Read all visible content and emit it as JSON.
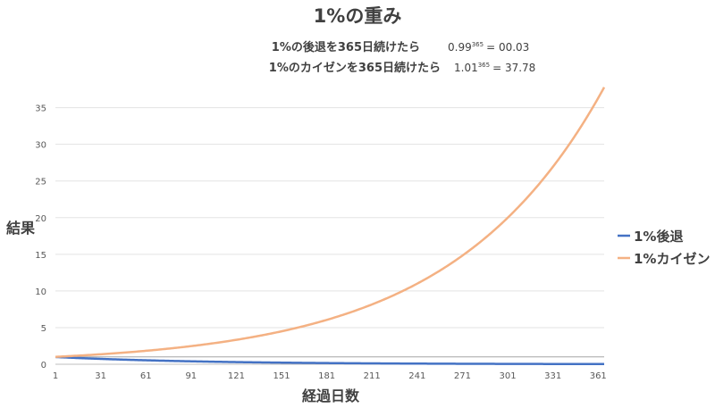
{
  "chart_data": {
    "type": "line",
    "title": "1%の重み",
    "annotations": [
      {
        "label": "1%の後退を365日続けたら",
        "base": "0.99",
        "exponent": "365",
        "result": "= 00.03"
      },
      {
        "label": "1%のカイゼンを365日続けたら",
        "base": "1.01",
        "exponent": "365",
        "result": "= 37.78"
      }
    ],
    "xlabel": "経過日数",
    "ylabel": "結果",
    "x_range": [
      1,
      365
    ],
    "x_ticks": [
      "1",
      "31",
      "61",
      "91",
      "121",
      "151",
      "181",
      "211",
      "241",
      "271",
      "301",
      "331",
      "361"
    ],
    "y_ticks": [
      "0",
      "5",
      "10",
      "15",
      "20",
      "25",
      "30",
      "35"
    ],
    "ylim": [
      0,
      38
    ],
    "grid": true,
    "legend_position": "right",
    "series": [
      {
        "name": "1%後退",
        "color": "#4472c4",
        "rate": 0.99,
        "formula": "0.99^day"
      },
      {
        "name": "1%カイゼン",
        "color": "#f4b183",
        "rate": 1.01,
        "formula": "1.01^day"
      }
    ],
    "reference_line": {
      "value": 1,
      "color": "#a6a6a6"
    }
  }
}
